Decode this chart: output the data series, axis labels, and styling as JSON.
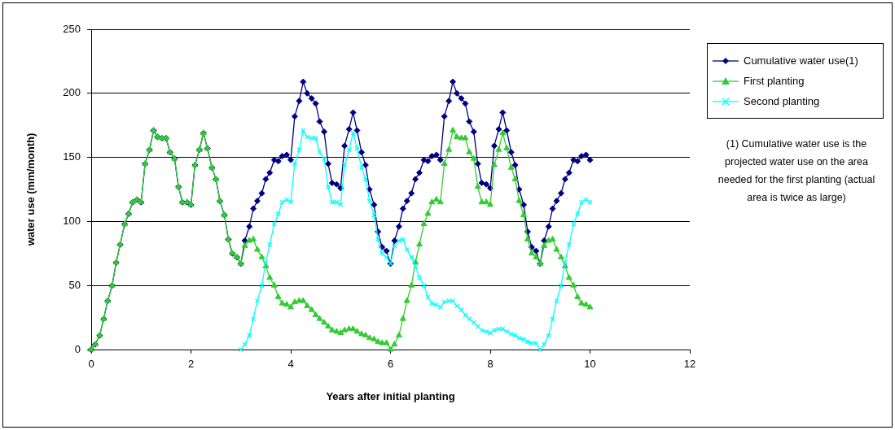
{
  "chart_data": {
    "type": "line",
    "xlabel": "Years after initial planting",
    "ylabel": "water use (mm/month)",
    "xlim": [
      0,
      12
    ],
    "xticks": [
      0,
      2,
      4,
      6,
      8,
      10,
      12
    ],
    "ylim": [
      0,
      250
    ],
    "yticks": [
      0,
      50,
      100,
      150,
      200,
      250
    ],
    "grid": "y",
    "legend": "right",
    "line_style": "solid",
    "annotations": [
      "(1) Cumulative water use is the projected water use on the area needed for the first planting (actual area is twice as large)"
    ],
    "x": [
      0,
      0.08,
      0.17,
      0.25,
      0.33,
      0.42,
      0.5,
      0.58,
      0.67,
      0.75,
      0.83,
      0.92,
      1,
      1.08,
      1.17,
      1.25,
      1.33,
      1.42,
      1.5,
      1.58,
      1.67,
      1.75,
      1.83,
      1.92,
      2,
      2.08,
      2.17,
      2.25,
      2.33,
      2.42,
      2.5,
      2.58,
      2.67,
      2.75,
      2.83,
      2.92,
      3,
      3.08,
      3.17,
      3.25,
      3.33,
      3.42,
      3.5,
      3.58,
      3.67,
      3.75,
      3.83,
      3.92,
      4,
      4.08,
      4.17,
      4.25,
      4.33,
      4.42,
      4.5,
      4.58,
      4.67,
      4.75,
      4.83,
      4.92,
      5,
      5.08,
      5.17,
      5.25,
      5.33,
      5.42,
      5.5,
      5.58,
      5.67,
      5.75,
      5.83,
      5.92,
      6,
      6.08,
      6.17,
      6.25,
      6.33,
      6.42,
      6.5,
      6.58,
      6.67,
      6.75,
      6.83,
      6.92,
      7,
      7.08,
      7.17,
      7.25,
      7.33,
      7.42,
      7.5,
      7.58,
      7.67,
      7.75,
      7.83,
      7.92,
      8,
      8.08,
      8.17,
      8.25,
      8.33,
      8.42,
      8.5,
      8.58,
      8.67,
      8.75,
      8.83,
      8.92,
      9,
      9.08,
      9.17,
      9.25,
      9.33,
      9.42,
      9.5,
      9.58,
      9.67,
      9.75,
      9.83,
      9.92,
      10
    ],
    "series": [
      {
        "name": "Cumulative water use(1)",
        "color": "#000080",
        "marker": "diamond",
        "values": [
          0,
          4,
          11,
          24,
          38,
          50,
          68,
          82,
          98,
          106,
          115,
          117,
          115,
          145,
          156,
          171,
          166,
          165,
          165,
          154,
          149,
          127,
          115,
          115,
          113,
          144,
          156,
          169,
          157,
          142,
          133,
          116,
          105,
          86,
          75,
          72,
          67,
          85,
          96,
          110,
          116,
          122,
          133,
          138,
          148,
          147,
          151,
          152,
          148,
          182,
          194,
          209,
          200,
          196,
          192,
          178,
          170,
          145,
          130,
          129,
          126,
          159,
          172,
          185,
          171,
          154,
          144,
          125,
          113,
          92,
          80,
          77,
          67,
          85,
          96,
          110,
          116,
          122,
          133,
          138,
          148,
          147,
          151,
          152,
          148,
          182,
          194,
          209,
          200,
          196,
          192,
          178,
          170,
          145,
          130,
          129,
          126,
          159,
          172,
          185,
          171,
          154,
          144,
          125,
          113,
          92,
          80,
          77,
          67,
          85,
          96,
          110,
          116,
          122,
          133,
          138,
          148,
          147,
          151,
          152,
          148
        ]
      },
      {
        "name": "First planting",
        "color": "#33cc33",
        "marker": "triangle",
        "values": [
          0,
          4,
          11,
          24,
          38,
          50,
          68,
          82,
          98,
          106,
          115,
          117,
          115,
          145,
          156,
          171,
          166,
          165,
          165,
          154,
          149,
          127,
          115,
          115,
          113,
          144,
          156,
          169,
          157,
          142,
          133,
          116,
          105,
          86,
          75,
          72,
          67,
          81,
          85,
          86,
          78,
          72,
          65,
          56,
          50,
          41,
          36,
          35,
          33,
          37,
          38,
          38,
          34,
          31,
          27,
          24,
          21,
          18,
          15,
          14,
          13,
          15,
          16,
          16,
          14,
          12,
          11,
          9,
          8,
          6,
          5,
          5,
          0,
          4,
          11,
          24,
          38,
          50,
          68,
          82,
          98,
          106,
          115,
          117,
          115,
          145,
          156,
          171,
          166,
          165,
          165,
          154,
          149,
          127,
          115,
          115,
          113,
          144,
          156,
          169,
          157,
          142,
          133,
          116,
          105,
          86,
          75,
          72,
          67,
          81,
          85,
          86,
          78,
          72,
          65,
          56,
          50,
          41,
          36,
          35,
          33
        ]
      },
      {
        "name": "Second planting",
        "color": "#00ffff",
        "marker": "cross",
        "values": [
          null,
          null,
          null,
          null,
          null,
          null,
          null,
          null,
          null,
          null,
          null,
          null,
          null,
          null,
          null,
          null,
          null,
          null,
          null,
          null,
          null,
          null,
          null,
          null,
          null,
          null,
          null,
          null,
          null,
          null,
          null,
          null,
          null,
          null,
          null,
          null,
          0,
          4,
          11,
          24,
          38,
          50,
          68,
          82,
          98,
          106,
          115,
          117,
          115,
          145,
          156,
          171,
          166,
          165,
          165,
          154,
          149,
          127,
          115,
          115,
          113,
          144,
          156,
          169,
          157,
          142,
          133,
          116,
          105,
          86,
          75,
          72,
          67,
          81,
          85,
          86,
          78,
          72,
          65,
          56,
          50,
          41,
          36,
          35,
          33,
          37,
          38,
          38,
          34,
          31,
          27,
          24,
          21,
          18,
          15,
          14,
          13,
          15,
          16,
          16,
          14,
          12,
          11,
          9,
          8,
          6,
          5,
          5,
          0,
          4,
          11,
          24,
          38,
          50,
          68,
          82,
          98,
          106,
          115,
          117,
          115
        ]
      }
    ]
  }
}
